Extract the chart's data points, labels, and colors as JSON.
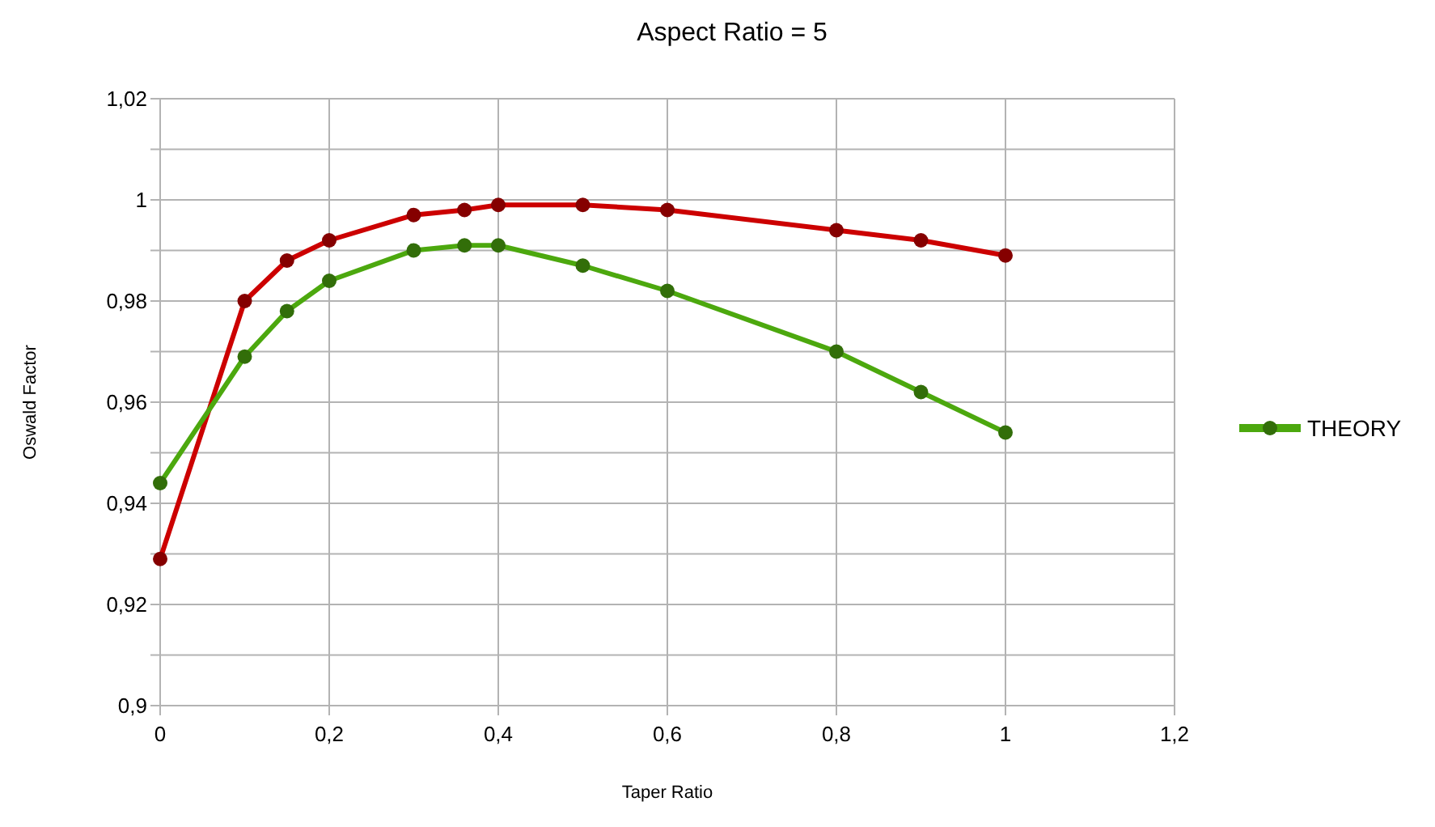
{
  "chart_data": {
    "type": "line",
    "title": "Aspect Ratio = 5",
    "xlabel": "Taper Ratio",
    "ylabel": "Oswald Factor",
    "x": [
      0,
      0.1,
      0.15,
      0.2,
      0.3,
      0.36,
      0.4,
      0.5,
      0.6,
      0.8,
      0.9,
      1
    ],
    "series": [
      {
        "color": "#cc0000",
        "values": [
          0.929,
          0.98,
          0.988,
          0.992,
          0.997,
          0.998,
          0.999,
          0.999,
          0.998,
          0.994,
          0.992,
          0.989
        ]
      },
      {
        "name": "THEORY",
        "color": "#4ca80e",
        "values": [
          0.944,
          0.969,
          0.978,
          0.984,
          0.99,
          0.991,
          0.991,
          0.987,
          0.982,
          0.97,
          0.962,
          0.954
        ]
      }
    ],
    "xlim": [
      0,
      1.2
    ],
    "xticks": [
      0,
      {
        "value": 0.2,
        "label": "0,2"
      },
      {
        "value": 0.4,
        "label": "0,4"
      },
      {
        "value": 0.6,
        "label": "0,6"
      },
      {
        "value": 0.8,
        "label": "0,8"
      },
      1,
      {
        "value": 1.2,
        "label": "1,2"
      }
    ],
    "ylim": [
      0.9,
      1.02
    ],
    "yticks": [
      {
        "value": 0.9,
        "label": "0,9"
      },
      {
        "value": 0.91,
        "label": null
      },
      {
        "value": 0.92,
        "label": "0,92"
      },
      {
        "value": 0.93,
        "label": null
      },
      {
        "value": 0.94,
        "label": "0,94"
      },
      {
        "value": 0.95,
        "label": null
      },
      {
        "value": 0.96,
        "label": "0,96"
      },
      {
        "value": 0.97,
        "label": null
      },
      {
        "value": 0.98,
        "label": "0,98"
      },
      {
        "value": 0.99,
        "label": null
      },
      1,
      {
        "value": 1.01,
        "label": null
      },
      {
        "value": 1.02,
        "label": "1,02"
      }
    ],
    "grid": true,
    "legend": "right",
    "marker": "circle",
    "line_style": "solid"
  }
}
